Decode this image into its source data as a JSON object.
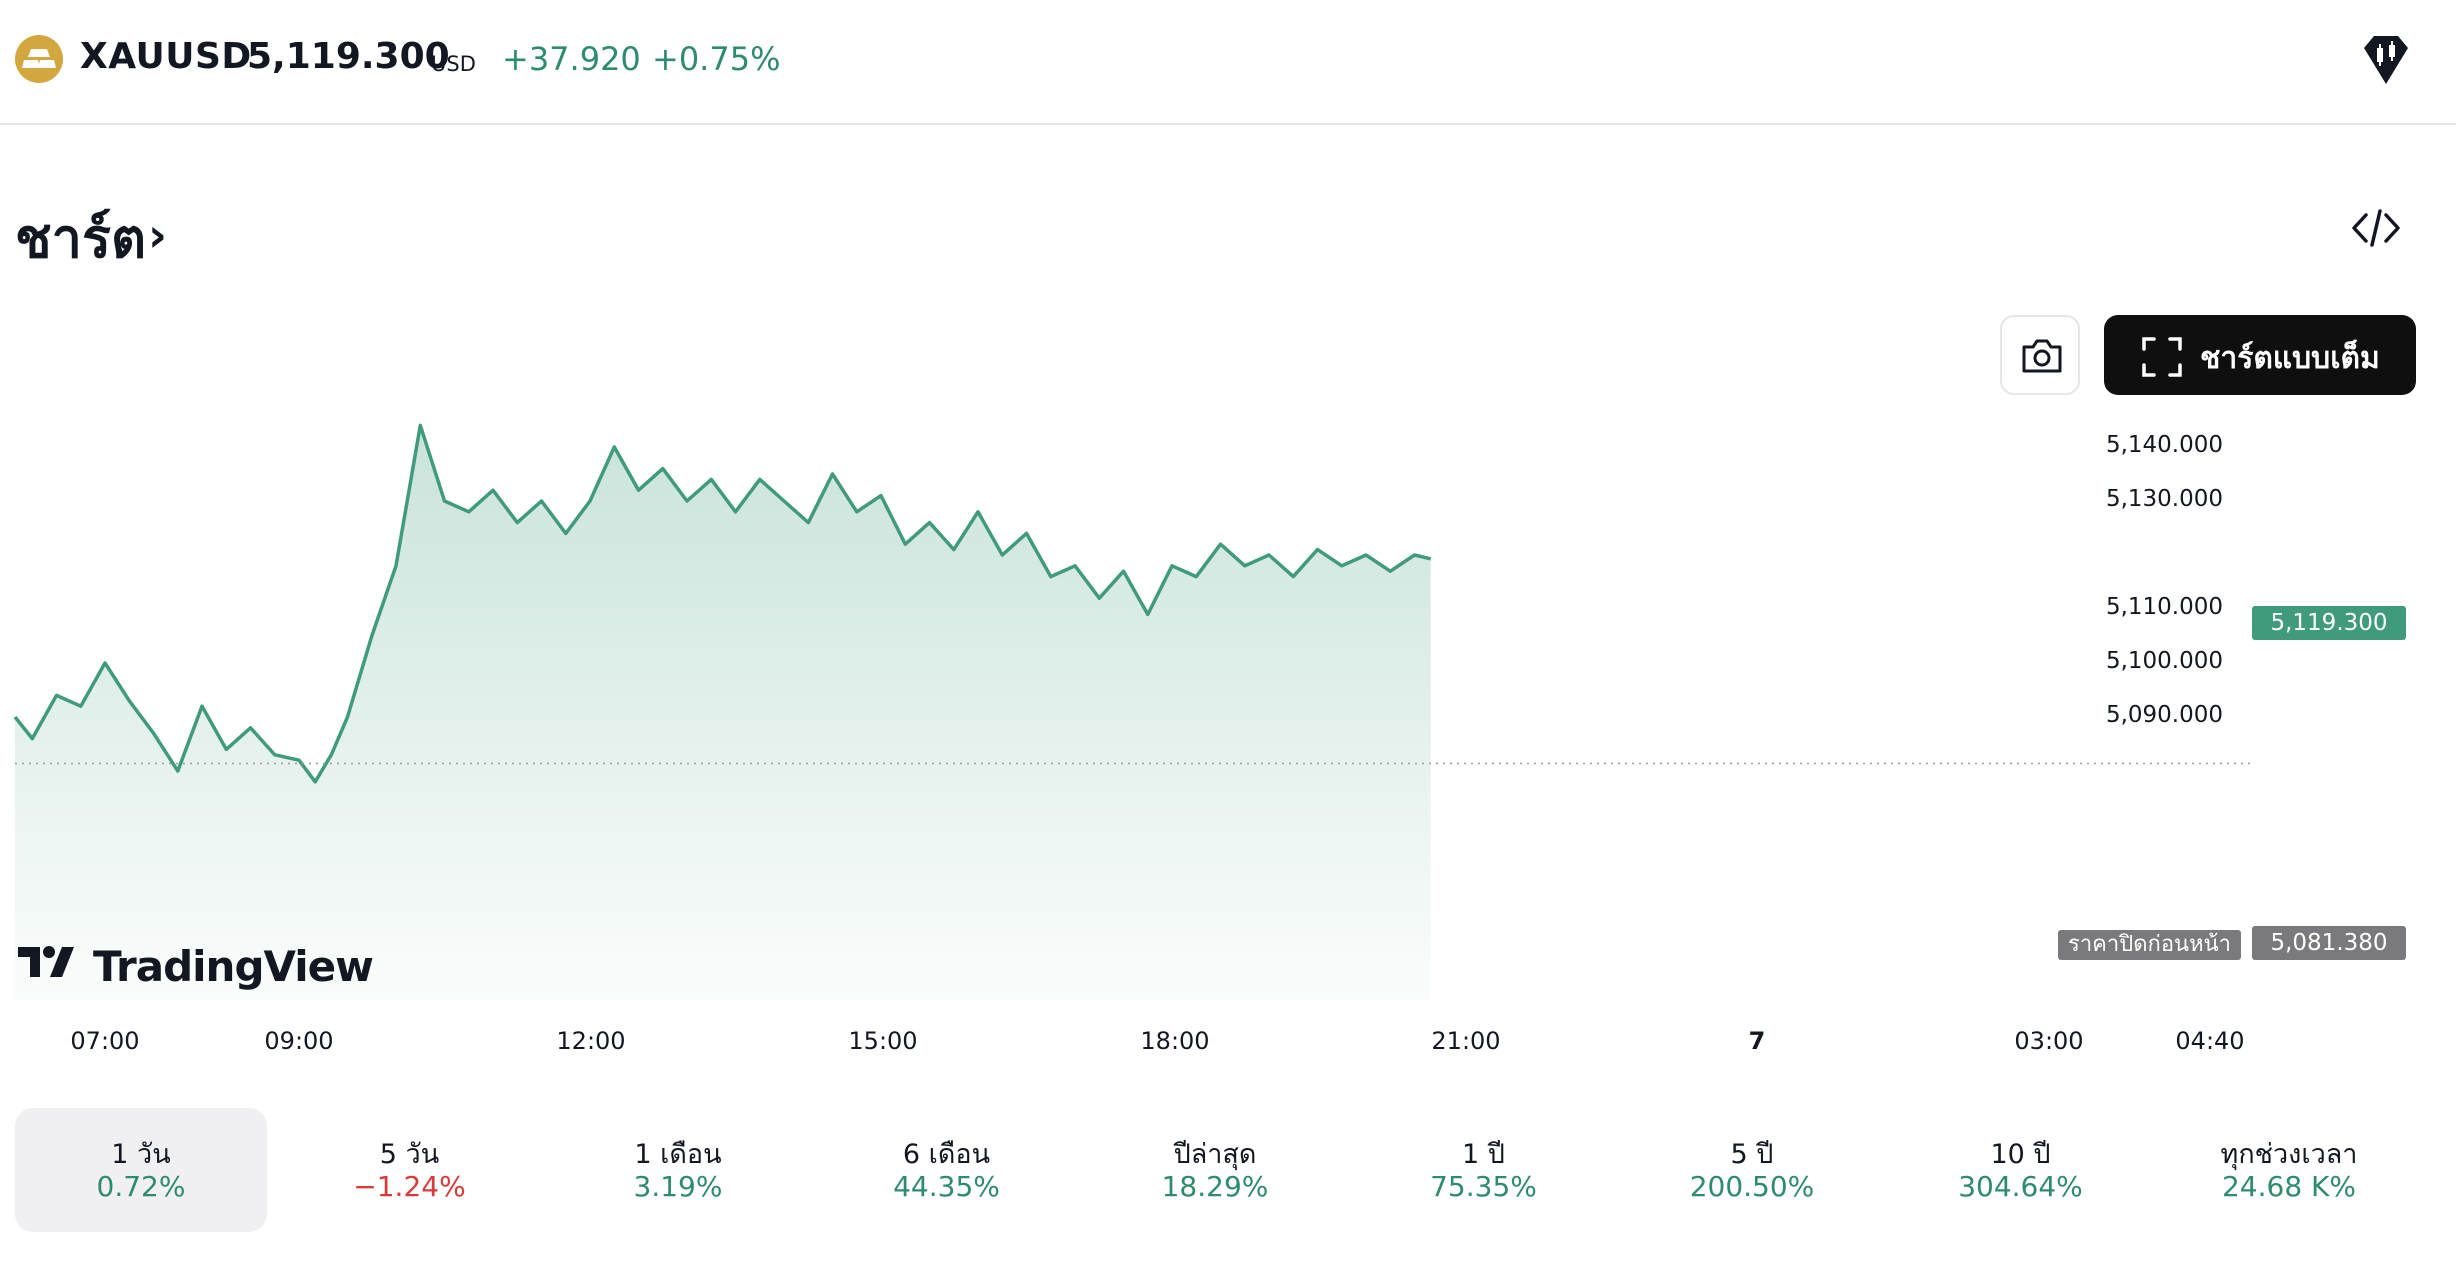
{
  "header": {
    "symbol": "XAUUSD",
    "price": "5,119.300",
    "currency": "USD",
    "change": "+37.920",
    "change_percent": "+0.75%",
    "accent": "#2e8b6f",
    "logo_color": "#d2a73f"
  },
  "section": {
    "title": "ชาร์ต",
    "chevron": "›"
  },
  "toolbar": {
    "camera_icon": "camera-icon",
    "fullscreen_label": "ชาร์ตแบบเต็ม",
    "embed_icon": "code-icon"
  },
  "chart": {
    "current_price_tag": "5,119.300",
    "prev_close_label": "ราคาปิดก่อนหน้า",
    "prev_close_value": "5,081.380",
    "watermark": "TradingView"
  },
  "chart_data": {
    "type": "area",
    "series_color": "#3f9b7b",
    "y_ticks": [
      "5,140.000",
      "5,130.000",
      "5,110.000",
      "5,100.000",
      "5,090.000"
    ],
    "x_ticks": [
      "07:00",
      "09:00",
      "12:00",
      "15:00",
      "18:00",
      "21:00",
      "7",
      "03:00",
      "04:40"
    ],
    "ylim": [
      5072,
      5146
    ],
    "current_price": 5119.3,
    "previous_close": 5081.38,
    "series": [
      {
        "x": [
          "06:00",
          "06:15",
          "06:30",
          "06:45",
          "07:00",
          "07:15",
          "07:30",
          "07:45",
          "08:00",
          "08:15",
          "08:30",
          "08:45",
          "09:00",
          "09:10",
          "09:20",
          "09:30",
          "09:45",
          "10:00",
          "10:15",
          "10:30",
          "10:45",
          "11:00",
          "11:15",
          "11:30",
          "11:45",
          "12:00",
          "12:15",
          "12:30",
          "12:45",
          "13:00",
          "13:15",
          "13:30",
          "13:45",
          "14:00",
          "14:15",
          "14:30",
          "14:45",
          "15:00",
          "15:15",
          "15:30",
          "15:45",
          "16:00",
          "16:15",
          "16:30",
          "16:45",
          "17:00",
          "17:15",
          "17:30",
          "17:45",
          "18:00",
          "18:15",
          "18:30",
          "18:45",
          "19:00",
          "19:15",
          "19:30",
          "19:45",
          "20:00",
          "20:15",
          "20:30",
          "20:40"
        ],
        "y": [
          5090,
          5086,
          5094,
          5092,
          5100,
          5093,
          5087,
          5080,
          5092,
          5084,
          5088,
          5083,
          5082,
          5078,
          5083,
          5090,
          5105,
          5118,
          5144,
          5130,
          5128,
          5132,
          5126,
          5130,
          5124,
          5130,
          5140,
          5132,
          5136,
          5130,
          5134,
          5128,
          5134,
          5130,
          5126,
          5135,
          5128,
          5131,
          5122,
          5126,
          5121,
          5128,
          5120,
          5124,
          5116,
          5118,
          5112,
          5117,
          5109,
          5118,
          5116,
          5122,
          5118,
          5120,
          5116,
          5121,
          5118,
          5120,
          5117,
          5120,
          5119.3
        ]
      }
    ]
  },
  "ranges": [
    {
      "label": "1 วัน",
      "value": "0.72%",
      "neg": false
    },
    {
      "label": "5 วัน",
      "value": "−1.24%",
      "neg": true
    },
    {
      "label": "1 เดือน",
      "value": "3.19%",
      "neg": false
    },
    {
      "label": "6 เดือน",
      "value": "44.35%",
      "neg": false
    },
    {
      "label": "ปีล่าสุด",
      "value": "18.29%",
      "neg": false
    },
    {
      "label": "1 ปี",
      "value": "75.35%",
      "neg": false
    },
    {
      "label": "5 ปี",
      "value": "200.50%",
      "neg": false
    },
    {
      "label": "10 ปี",
      "value": "304.64%",
      "neg": false
    },
    {
      "label": "ทุกช่วงเวลา",
      "value": "24.68 K%",
      "neg": false
    }
  ]
}
